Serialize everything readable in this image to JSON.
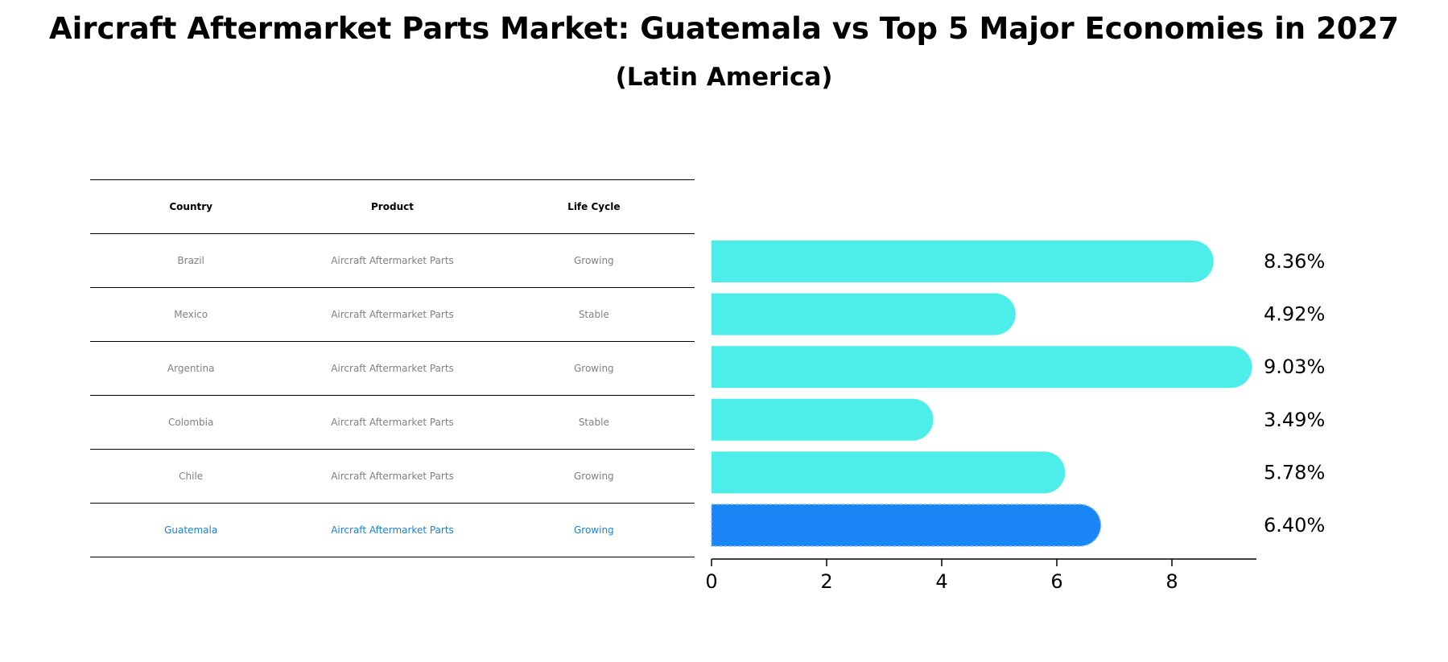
{
  "title": "Aircraft Aftermarket Parts Market: Guatemala vs Top 5 Major Economies in 2027",
  "subtitle": "(Latin America)",
  "table": {
    "headers": [
      "Country",
      "Product",
      "Life Cycle"
    ],
    "rows": [
      {
        "country": "Brazil",
        "product": "Aircraft Aftermarket Parts",
        "life_cycle": "Growing"
      },
      {
        "country": "Mexico",
        "product": "Aircraft Aftermarket Parts",
        "life_cycle": "Stable"
      },
      {
        "country": "Argentina",
        "product": "Aircraft Aftermarket Parts",
        "life_cycle": "Growing"
      },
      {
        "country": "Colombia",
        "product": "Aircraft Aftermarket Parts",
        "life_cycle": "Stable"
      },
      {
        "country": "Chile",
        "product": "Aircraft Aftermarket Parts",
        "life_cycle": "Growing"
      },
      {
        "country": "Guatemala",
        "product": "Aircraft Aftermarket Parts",
        "life_cycle": "Growing"
      }
    ]
  },
  "colors": {
    "bar": "#4deeea",
    "highlight_bar": "#1a86f6",
    "highlight_text": "#1a80d8",
    "row_text": "#808080"
  },
  "chart_data": {
    "type": "bar",
    "orientation": "horizontal",
    "categories": [
      "Brazil",
      "Mexico",
      "Argentina",
      "Colombia",
      "Chile",
      "Guatemala"
    ],
    "values": [
      8.36,
      4.92,
      9.03,
      3.49,
      5.78,
      6.4
    ],
    "value_labels": [
      "8.36%",
      "4.92%",
      "9.03%",
      "3.49%",
      "5.78%",
      "6.40%"
    ],
    "highlight": "Guatemala",
    "xlim": [
      0,
      9.5
    ],
    "xticks": [
      0,
      2,
      4,
      6,
      8
    ],
    "xlabel": "",
    "ylabel": "",
    "grid": false
  }
}
